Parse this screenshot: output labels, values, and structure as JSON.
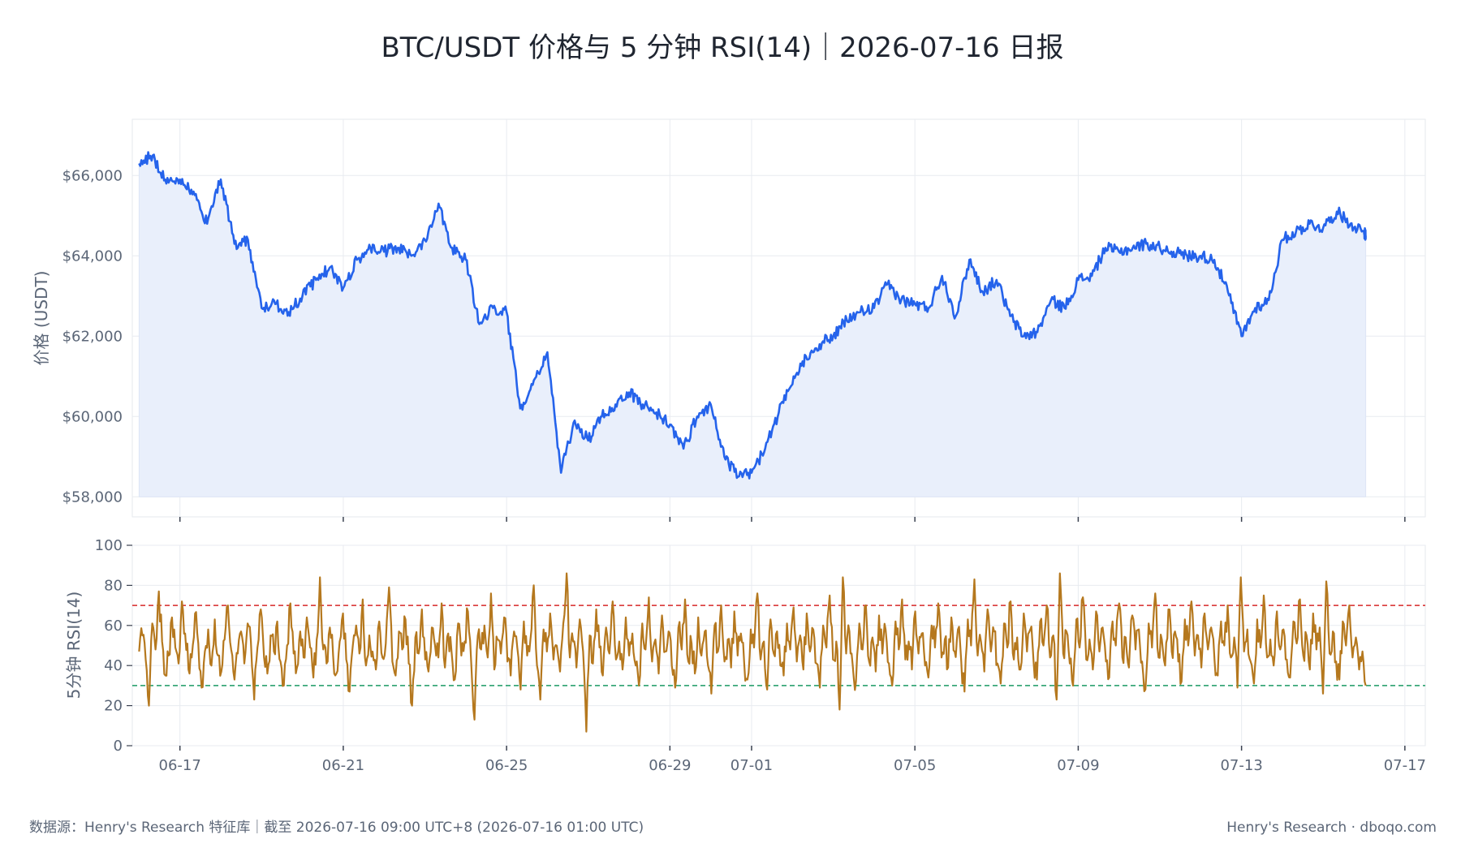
{
  "title": "BTC/USDT 价格与 5 分钟 RSI(14)｜2026-07-16 日报",
  "footer": {
    "source": "数据源：Henry's Research 特征库｜截至 2026-07-16 09:00 UTC+8 (2026-07-16 01:00 UTC)",
    "brand": "Henry's Research · dboqo.com"
  },
  "colors": {
    "price_line": "#2563eb",
    "price_fill": "#e9effb",
    "rsi_line": "#b5781e",
    "overbought": "#d62828",
    "oversold": "#1a9a63",
    "grid": "#e8ebf0",
    "axis": "#c9ced6"
  },
  "chart_data": [
    {
      "type": "area",
      "ylabel": "价格 (USDT)",
      "ylim": [
        57500,
        67400
      ],
      "xlim": [
        "2026-06-15T20:00",
        "2026-07-17T12:00"
      ],
      "yticks": [
        {
          "value": 58000,
          "label": "$58,000"
        },
        {
          "value": 60000,
          "label": "$60,000"
        },
        {
          "value": 62000,
          "label": "$62,000"
        },
        {
          "value": 64000,
          "label": "$64,000"
        },
        {
          "value": 66000,
          "label": "$66,000"
        }
      ],
      "grid": true,
      "series": [
        {
          "x": [
            "2026-06-16T00:00",
            "2026-06-16T08:00",
            "2026-06-16T16:00",
            "2026-06-17T00:00",
            "2026-06-17T08:00",
            "2026-06-17T16:00",
            "2026-06-18T00:00",
            "2026-06-18T08:00",
            "2026-06-18T16:00",
            "2026-06-19T00:00",
            "2026-06-19T08:00",
            "2026-06-19T16:00",
            "2026-06-20T00:00",
            "2026-06-20T08:00",
            "2026-06-20T16:00",
            "2026-06-21T00:00",
            "2026-06-21T08:00",
            "2026-06-21T16:00",
            "2026-06-22T00:00",
            "2026-06-22T08:00",
            "2026-06-22T16:00",
            "2026-06-23T00:00",
            "2026-06-23T08:00",
            "2026-06-23T16:00",
            "2026-06-24T00:00",
            "2026-06-24T08:00",
            "2026-06-24T16:00",
            "2026-06-25T00:00",
            "2026-06-25T08:00",
            "2026-06-25T16:00",
            "2026-06-26T00:00",
            "2026-06-26T08:00",
            "2026-06-26T16:00",
            "2026-06-27T00:00",
            "2026-06-27T08:00",
            "2026-06-27T16:00",
            "2026-06-28T00:00",
            "2026-06-28T08:00",
            "2026-06-28T16:00",
            "2026-06-29T00:00",
            "2026-06-29T08:00",
            "2026-06-29T16:00",
            "2026-06-30T00:00",
            "2026-06-30T08:00",
            "2026-06-30T16:00",
            "2026-07-01T00:00",
            "2026-07-01T08:00",
            "2026-07-01T16:00",
            "2026-07-02T00:00",
            "2026-07-02T08:00",
            "2026-07-02T16:00",
            "2026-07-03T00:00",
            "2026-07-03T08:00",
            "2026-07-03T16:00",
            "2026-07-04T00:00",
            "2026-07-04T08:00",
            "2026-07-04T16:00",
            "2026-07-05T00:00",
            "2026-07-05T08:00",
            "2026-07-05T16:00",
            "2026-07-06T00:00",
            "2026-07-06T08:00",
            "2026-07-06T16:00",
            "2026-07-07T00:00",
            "2026-07-07T08:00",
            "2026-07-07T16:00",
            "2026-07-08T00:00",
            "2026-07-08T08:00",
            "2026-07-08T16:00",
            "2026-07-09T00:00",
            "2026-07-09T08:00",
            "2026-07-09T16:00",
            "2026-07-10T00:00",
            "2026-07-10T08:00",
            "2026-07-10T16:00",
            "2026-07-11T00:00",
            "2026-07-11T08:00",
            "2026-07-11T16:00",
            "2026-07-12T00:00",
            "2026-07-12T08:00",
            "2026-07-12T16:00",
            "2026-07-13T00:00",
            "2026-07-13T08:00",
            "2026-07-13T16:00",
            "2026-07-14T00:00",
            "2026-07-14T08:00",
            "2026-07-14T16:00",
            "2026-07-15T00:00",
            "2026-07-15T08:00",
            "2026-07-15T16:00",
            "2026-07-16T00:00",
            "2026-07-16T01:00"
          ],
          "values": [
            66300,
            66500,
            65800,
            65900,
            65600,
            64800,
            65900,
            64300,
            64400,
            62700,
            62800,
            62600,
            63000,
            63400,
            63700,
            63200,
            63900,
            64200,
            64100,
            64200,
            64000,
            64400,
            65300,
            64200,
            63900,
            62300,
            62700,
            62600,
            60200,
            60900,
            61600,
            58600,
            59900,
            59400,
            60000,
            60300,
            60600,
            60300,
            60100,
            59800,
            59200,
            60000,
            60300,
            59000,
            58500,
            58600,
            59200,
            60100,
            60800,
            61500,
            61800,
            62000,
            62400,
            62600,
            62700,
            63300,
            62900,
            62800,
            62700,
            63500,
            62500,
            63900,
            63100,
            63400,
            62500,
            62000,
            62100,
            62900,
            62700,
            63400,
            63500,
            64200,
            64100,
            64200,
            64300,
            64200,
            64100,
            64000,
            64000,
            63900,
            63100,
            62000,
            62700,
            62900,
            64400,
            64600,
            64800,
            64700,
            65100,
            64800,
            64600,
            64500
          ]
        }
      ]
    },
    {
      "type": "line",
      "ylabel": "5分钟 RSI(14)",
      "ylim": [
        0,
        100
      ],
      "yticks": [
        0,
        20,
        40,
        60,
        80,
        100
      ],
      "xticks": [
        "06-17",
        "06-21",
        "06-25",
        "06-29",
        "07-01",
        "07-05",
        "07-09",
        "07-13",
        "07-17"
      ],
      "grid": true,
      "reference_lines": [
        {
          "value": 70,
          "color": "#d62828",
          "style": "dashed"
        },
        {
          "value": 30,
          "color": "#1a9a63",
          "style": "dashed"
        }
      ],
      "series": [
        {
          "x_start": "2026-06-16T00:00",
          "x_end": "2026-07-16T01:00",
          "values": [
            47,
            55,
            43,
            20,
            61,
            48,
            77,
            52,
            35,
            45,
            64,
            49,
            41,
            72,
            56,
            38,
            44,
            66,
            51,
            29,
            47,
            58,
            40,
            63,
            45,
            37,
            53,
            70,
            48,
            33,
            46,
            57,
            41,
            61,
            52,
            23,
            49,
            68,
            44,
            36,
            55,
            47,
            62,
            42,
            30,
            50,
            71,
            46,
            39,
            57,
            44,
            64,
            49,
            34,
            53,
            84,
            48,
            41,
            59,
            45,
            36,
            52,
            66,
            43,
            27,
            50,
            60,
            46,
            73,
            40,
            55,
            47,
            38,
            62,
            44,
            51,
            79,
            42,
            35,
            57,
            48,
            63,
            41,
            20,
            54,
            46,
            68,
            43,
            37,
            59,
            50,
            44,
            71,
            39,
            56,
            47,
            33,
            61,
            45,
            52,
            67,
            41,
            13,
            55,
            48,
            60,
            44,
            76,
            38,
            53,
            46,
            64,
            42,
            35,
            57,
            49,
            28,
            62,
            45,
            53,
            80,
            40,
            23,
            58,
            47,
            66,
            43,
            50,
            37,
            61,
            86,
            44,
            52,
            39,
            63,
            47,
            7,
            55,
            41,
            68,
            49,
            35,
            59,
            46,
            72,
            43,
            52,
            38,
            64,
            45,
            56,
            40,
            30,
            61,
            48,
            74,
            42,
            53,
            36,
            65,
            47,
            57,
            40,
            29,
            59,
            48,
            73,
            42,
            51,
            36,
            64,
            45,
            57,
            40,
            26,
            60,
            47,
            70,
            42,
            53,
            39,
            67,
            45,
            56,
            41,
            33,
            58,
            49,
            76,
            43,
            52,
            28,
            63,
            46,
            57,
            40,
            35,
            61,
            48,
            69,
            42,
            55,
            38,
            66,
            47,
            58,
            41,
            29,
            60,
            49,
            75,
            43,
            52,
            18,
            84,
            46,
            57,
            40,
            32,
            61,
            48,
            70,
            42,
            54,
            37,
            65,
            46,
            58,
            41,
            30,
            62,
            48,
            73,
            43,
            52,
            38,
            67,
            46,
            56,
            40,
            34,
            60,
            49,
            71,
            44,
            53,
            39,
            64,
            47,
            58,
            42,
            27,
            63,
            50,
            83,
            45,
            52,
            37,
            68,
            47,
            57,
            41,
            31,
            61,
            49,
            72,
            43,
            54,
            38,
            66,
            47,
            58,
            42,
            33,
            62,
            50,
            70,
            44,
            55,
            23,
            86,
            46,
            57,
            41,
            30,
            63,
            49,
            74,
            43,
            53,
            38,
            67,
            47,
            59,
            42,
            34,
            62,
            50,
            71,
            44,
            54,
            39,
            65,
            48,
            58,
            42,
            28,
            61,
            49,
            76,
            44,
            53,
            40,
            68,
            47,
            57,
            42,
            32,
            63,
            50,
            72,
            45,
            55,
            39,
            66,
            48,
            59,
            43,
            35,
            62,
            50,
            70,
            44,
            54,
            29,
            84,
            47,
            58,
            42,
            31,
            63,
            49,
            75,
            44,
            53,
            40,
            67,
            48,
            58,
            43,
            34,
            62,
            51,
            73,
            45,
            55,
            38,
            66,
            48,
            59,
            26,
            82,
            46,
            57,
            42,
            33,
            62,
            50,
            70,
            44,
            54,
            38,
            47,
            30
          ]
        }
      ]
    }
  ]
}
